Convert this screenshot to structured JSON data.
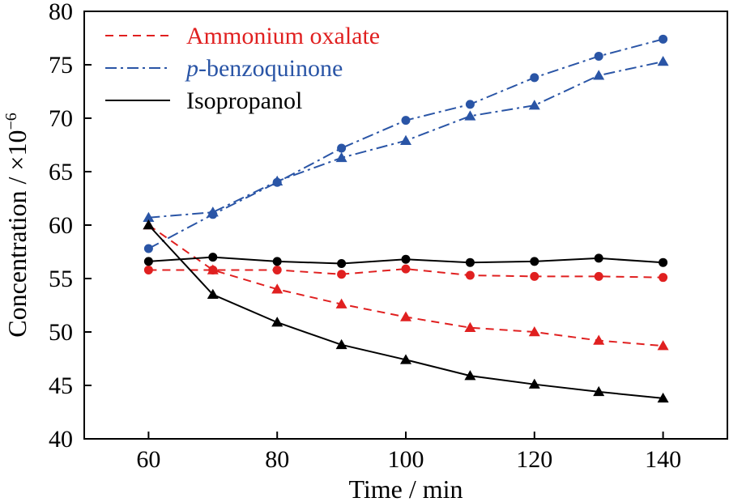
{
  "chart_data": {
    "type": "line",
    "xlabel": "Time / min",
    "ylabel_prefix": "Concentration / ×10",
    "ylabel_exponent": "−6",
    "xlim": [
      50,
      150
    ],
    "ylim": [
      40,
      80
    ],
    "x_ticks": [
      60,
      80,
      100,
      120,
      140
    ],
    "y_ticks": [
      40,
      45,
      50,
      55,
      60,
      65,
      70,
      75,
      80
    ],
    "grid": false,
    "legend_position": "top-left",
    "legend": [
      {
        "label_italic": "",
        "label": "Ammonium oxalate",
        "color": "#e02020",
        "dash": "dashed"
      },
      {
        "label_italic": "p",
        "label": "-benzoquinone",
        "color": "#2a55a6",
        "dash": "dashdot"
      },
      {
        "label_italic": "",
        "label": "Isopropanol",
        "color": "#000000",
        "dash": "solid"
      }
    ],
    "x": [
      60,
      70,
      80,
      90,
      100,
      110,
      120,
      130,
      140
    ],
    "series": [
      {
        "group": "Ammonium oxalate",
        "color": "#e02020",
        "dash": "dashed",
        "marker": "circle",
        "values": [
          55.8,
          55.8,
          55.8,
          55.4,
          55.9,
          55.3,
          55.2,
          55.2,
          55.1
        ]
      },
      {
        "group": "Ammonium oxalate",
        "color": "#e02020",
        "dash": "dashed",
        "marker": "triangle",
        "values": [
          60.0,
          55.8,
          54.0,
          52.6,
          51.4,
          50.4,
          50.0,
          49.2,
          48.7
        ]
      },
      {
        "group": "p-benzoquinone",
        "color": "#2a55a6",
        "dash": "dashdot",
        "marker": "circle",
        "values": [
          57.8,
          61.0,
          64.0,
          67.2,
          69.8,
          71.3,
          73.8,
          75.8,
          77.4
        ]
      },
      {
        "group": "p-benzoquinone",
        "color": "#2a55a6",
        "dash": "dashdot",
        "marker": "triangle",
        "values": [
          60.7,
          61.2,
          64.1,
          66.3,
          67.9,
          70.2,
          71.2,
          74.0,
          75.3
        ]
      },
      {
        "group": "Isopropanol",
        "color": "#000000",
        "dash": "solid",
        "marker": "circle",
        "values": [
          56.6,
          57.0,
          56.6,
          56.4,
          56.8,
          56.5,
          56.6,
          56.9,
          56.5
        ]
      },
      {
        "group": "Isopropanol",
        "color": "#000000",
        "dash": "solid",
        "marker": "triangle",
        "values": [
          60.0,
          53.5,
          50.9,
          48.8,
          47.4,
          45.9,
          45.1,
          44.4,
          43.8
        ]
      }
    ]
  }
}
